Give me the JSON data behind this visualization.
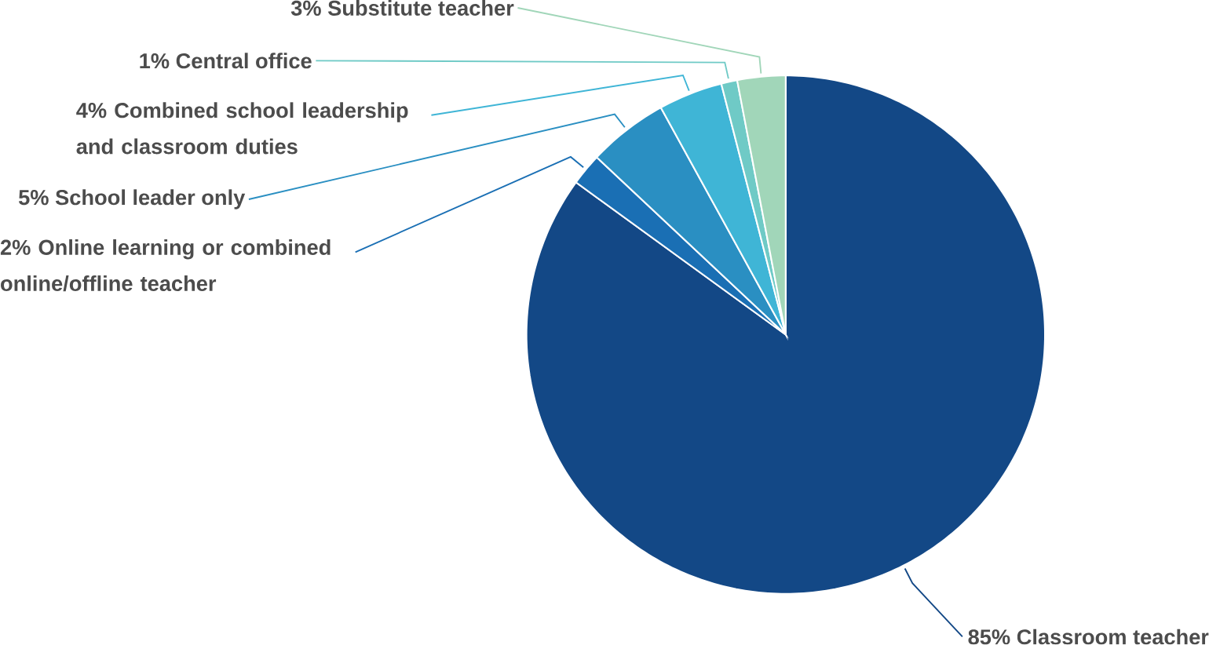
{
  "chart_data": {
    "type": "pie",
    "categories": [
      "Classroom teacher",
      "Online learning or combined online/offline teacher",
      "School leader only",
      "Combined school leadership and classroom duties",
      "Central office",
      "Substitute teacher"
    ],
    "values": [
      85,
      2,
      5,
      4,
      1,
      3
    ],
    "value_labels": [
      "85%",
      "2%",
      "5%",
      "4%",
      "1%",
      "3%"
    ],
    "colors": [
      "#134886",
      "#1a6fb4",
      "#2a8fc2",
      "#3fb5d6",
      "#6fcac6",
      "#a1d6b9"
    ]
  }
}
